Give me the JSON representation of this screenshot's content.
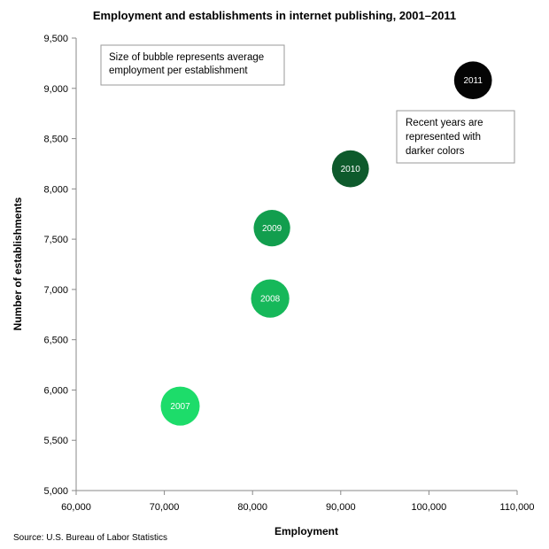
{
  "chart_data": {
    "type": "bubble",
    "title": "Employment and establishments in internet publishing, 2001–2011",
    "xlabel": "Employment",
    "ylabel": "Number of establishments",
    "source": "Source: U.S. Bureau of Labor Statistics",
    "xlim": [
      60000,
      110000
    ],
    "ylim": [
      5000,
      9500
    ],
    "x_ticks": [
      60000,
      70000,
      80000,
      90000,
      100000,
      110000
    ],
    "x_tick_labels": [
      "60,000",
      "70,000",
      "80,000",
      "90,000",
      "100,000",
      "110,000"
    ],
    "y_ticks": [
      5000,
      5500,
      6000,
      6500,
      7000,
      7500,
      8000,
      8500,
      9000,
      9500
    ],
    "y_tick_labels": [
      "5,000",
      "5,500",
      "6,000",
      "6,500",
      "7,000",
      "7,500",
      "8,000",
      "8,500",
      "9,000",
      "9,500"
    ],
    "grid": false,
    "annotations": {
      "size_note": [
        "Size of bubble represents average",
        "employment per establishment"
      ],
      "color_note": [
        "Recent years are",
        "represented with",
        "darker colors"
      ]
    },
    "points": [
      {
        "label": "2007",
        "x": 71800,
        "y": 5840,
        "size": 12.3,
        "color": "#1ddc6a"
      },
      {
        "label": "2008",
        "x": 82000,
        "y": 6910,
        "size": 11.9,
        "color": "#16b85a"
      },
      {
        "label": "2009",
        "x": 82200,
        "y": 7610,
        "size": 10.8,
        "color": "#129e4e"
      },
      {
        "label": "2010",
        "x": 91100,
        "y": 8200,
        "size": 11.1,
        "color": "#0e5a2c"
      },
      {
        "label": "2011",
        "x": 105000,
        "y": 9080,
        "size": 11.6,
        "color": "#040404"
      }
    ]
  }
}
